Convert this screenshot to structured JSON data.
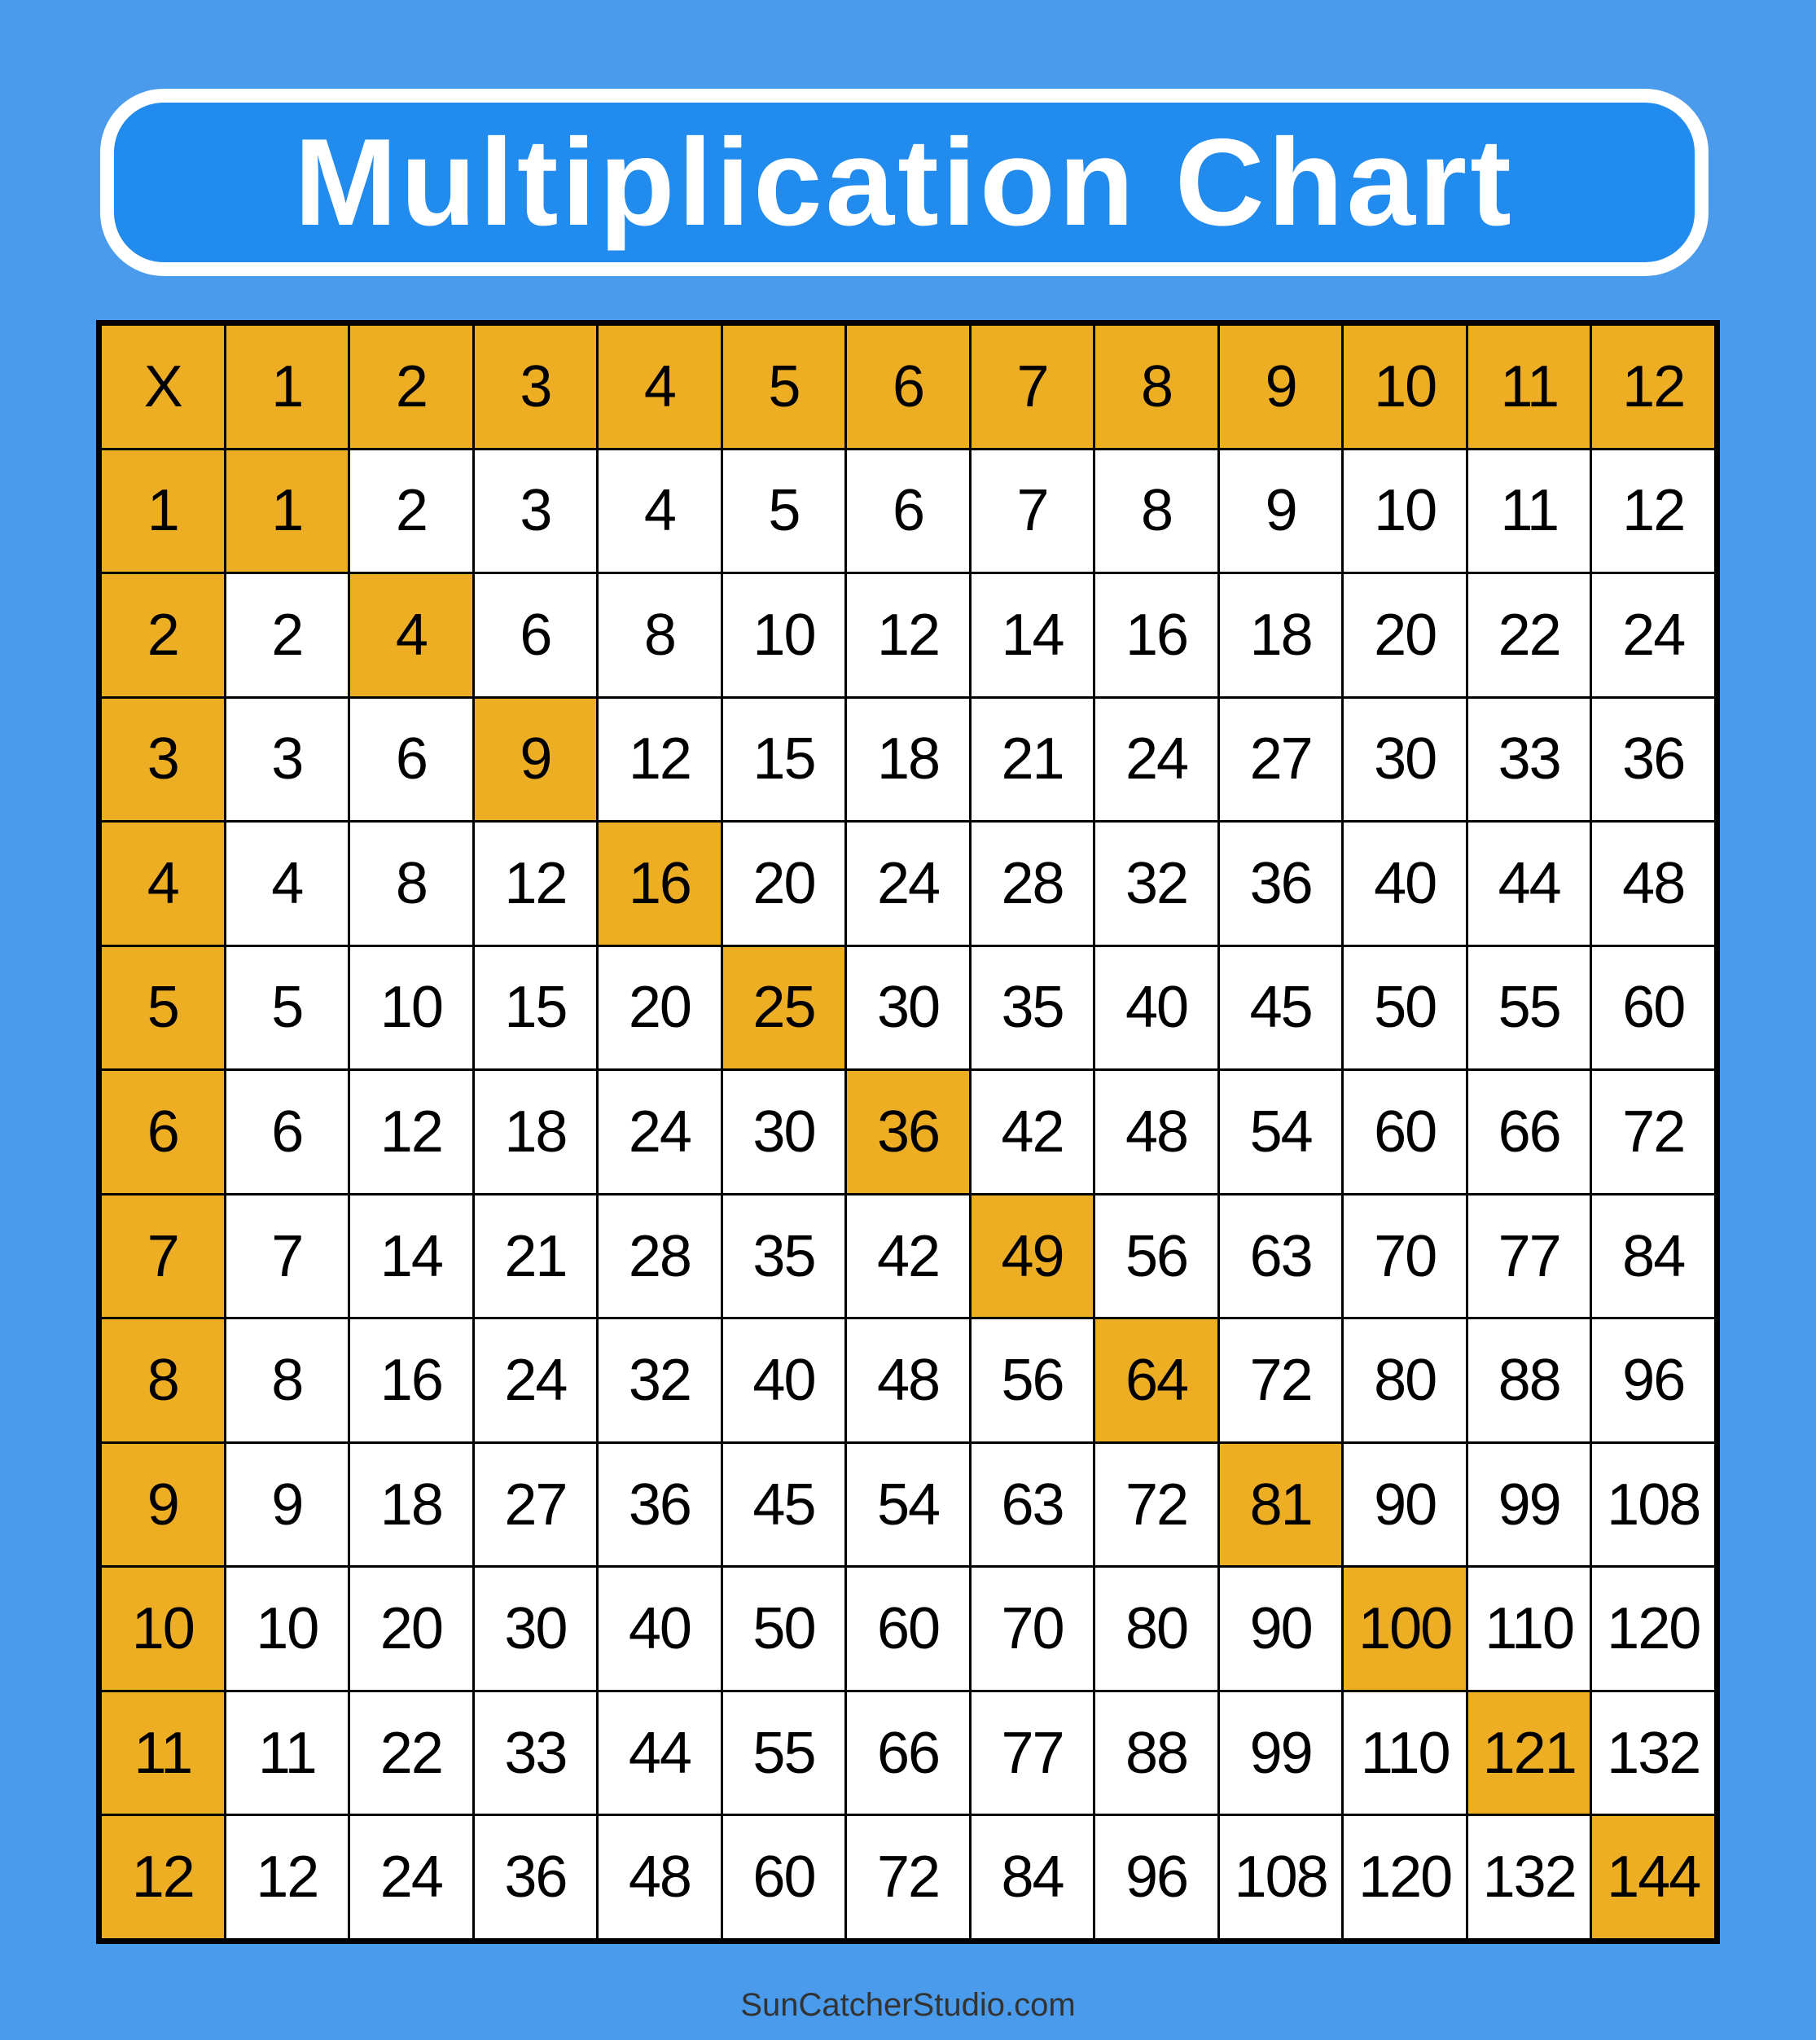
{
  "title": "Multiplication Chart",
  "footer": "SunCatcherStudio.com",
  "colors": {
    "background": "#4B9BEC",
    "title_box": "#218BEE",
    "highlight": "#EEAE24",
    "cell": "#FFFFFF"
  },
  "table": {
    "corner": "X",
    "column_headers": [
      "1",
      "2",
      "3",
      "4",
      "5",
      "6",
      "7",
      "8",
      "9",
      "10",
      "11",
      "12"
    ],
    "rows": [
      {
        "header": "1",
        "values": [
          "1",
          "2",
          "3",
          "4",
          "5",
          "6",
          "7",
          "8",
          "9",
          "10",
          "11",
          "12"
        ]
      },
      {
        "header": "2",
        "values": [
          "2",
          "4",
          "6",
          "8",
          "10",
          "12",
          "14",
          "16",
          "18",
          "20",
          "22",
          "24"
        ]
      },
      {
        "header": "3",
        "values": [
          "3",
          "6",
          "9",
          "12",
          "15",
          "18",
          "21",
          "24",
          "27",
          "30",
          "33",
          "36"
        ]
      },
      {
        "header": "4",
        "values": [
          "4",
          "8",
          "12",
          "16",
          "20",
          "24",
          "28",
          "32",
          "36",
          "40",
          "44",
          "48"
        ]
      },
      {
        "header": "5",
        "values": [
          "5",
          "10",
          "15",
          "20",
          "25",
          "30",
          "35",
          "40",
          "45",
          "50",
          "55",
          "60"
        ]
      },
      {
        "header": "6",
        "values": [
          "6",
          "12",
          "18",
          "24",
          "30",
          "36",
          "42",
          "48",
          "54",
          "60",
          "66",
          "72"
        ]
      },
      {
        "header": "7",
        "values": [
          "7",
          "14",
          "21",
          "28",
          "35",
          "42",
          "49",
          "56",
          "63",
          "70",
          "77",
          "84"
        ]
      },
      {
        "header": "8",
        "values": [
          "8",
          "16",
          "24",
          "32",
          "40",
          "48",
          "56",
          "64",
          "72",
          "80",
          "88",
          "96"
        ]
      },
      {
        "header": "9",
        "values": [
          "9",
          "18",
          "27",
          "36",
          "45",
          "54",
          "63",
          "72",
          "81",
          "90",
          "99",
          "108"
        ]
      },
      {
        "header": "10",
        "values": [
          "10",
          "20",
          "30",
          "40",
          "50",
          "60",
          "70",
          "80",
          "90",
          "100",
          "110",
          "120"
        ]
      },
      {
        "header": "11",
        "values": [
          "11",
          "22",
          "33",
          "44",
          "55",
          "66",
          "77",
          "88",
          "99",
          "110",
          "121",
          "132"
        ]
      },
      {
        "header": "12",
        "values": [
          "12",
          "24",
          "36",
          "48",
          "60",
          "72",
          "84",
          "96",
          "108",
          "120",
          "132",
          "144"
        ]
      }
    ]
  }
}
